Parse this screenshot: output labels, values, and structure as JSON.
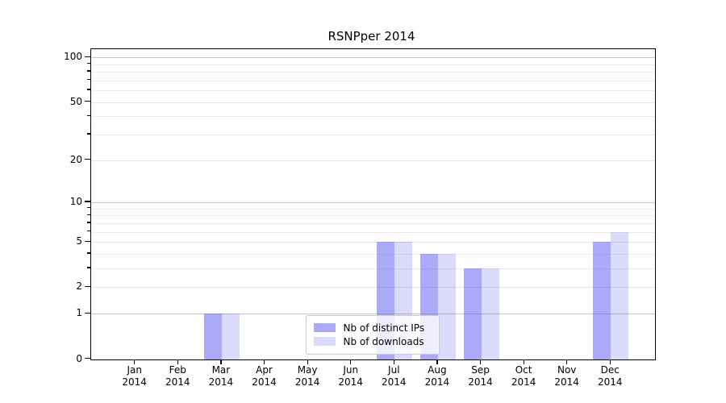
{
  "chart_data": {
    "type": "bar",
    "title": "RSNPper 2014",
    "categories": [
      "Jan",
      "Feb",
      "Mar",
      "Apr",
      "May",
      "Jun",
      "Jul",
      "Aug",
      "Sep",
      "Oct",
      "Nov",
      "Dec"
    ],
    "category_year": "2014",
    "series": [
      {
        "name": "Nb of distinct IPs",
        "color": "rgba(85,85,243,0.5)",
        "values": [
          0,
          0,
          1,
          0,
          0,
          0,
          5,
          4,
          3,
          0,
          0,
          5
        ]
      },
      {
        "name": "Nb of downloads",
        "color": "rgba(70,70,230,0.2)",
        "values": [
          0,
          0,
          1,
          0,
          0,
          0,
          5,
          4,
          3,
          0,
          0,
          6
        ]
      }
    ],
    "xlabel": "",
    "ylabel": "",
    "y_axis": {
      "scale": "log1p",
      "ticks": [
        0,
        1,
        2,
        5,
        10,
        20,
        50,
        100
      ],
      "decade_ticks": [
        1,
        10,
        100
      ],
      "ylim": [
        0,
        115
      ]
    },
    "grid": "on",
    "legend_position": "lower center"
  },
  "colors": {
    "ips_bar": "rgba(85,85,243,0.5)",
    "downloads_bar": "rgba(70,70,230,0.2)",
    "decade_grid": "#c6c6c6",
    "minor_grid": "#ebebeb",
    "spine": "#000000",
    "legend_border": "#cccccc"
  }
}
